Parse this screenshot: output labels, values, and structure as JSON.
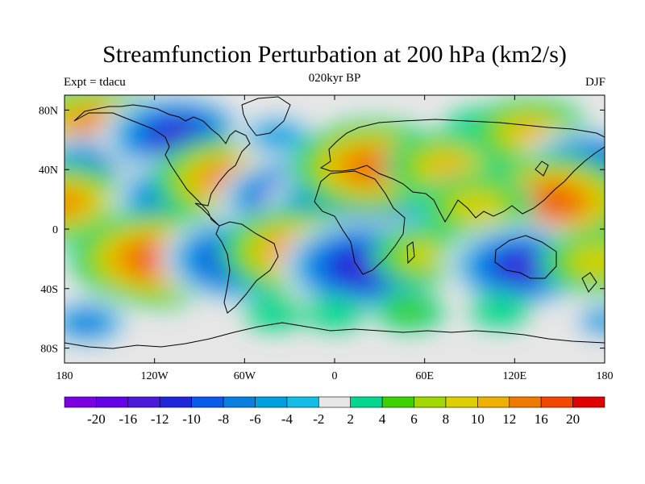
{
  "title": "Streamfunction Perturbation at 200 hPa (km2/s)",
  "left_label": "Expt = tdacu",
  "center_label": "020kyr BP",
  "right_label": "DJF",
  "chart_data": {
    "type": "filled-contour-map",
    "projection": "cylindrical equidistant",
    "variable": "Streamfunction perturbation at 200 hPa",
    "units": "km2/s",
    "lon_range": [
      -180,
      180
    ],
    "lat_range": [
      -90,
      90
    ],
    "x_ticks": [
      "180",
      "120W",
      "60W",
      "0",
      "60E",
      "120E",
      "180"
    ],
    "y_ticks": [
      "80N",
      "40N",
      "0",
      "40S",
      "80S"
    ],
    "contour_levels": [
      "-20",
      "-16",
      "-12",
      "-10",
      "-8",
      "-6",
      "-4",
      "-2",
      "2",
      "4",
      "6",
      "8",
      "10",
      "12",
      "16",
      "20"
    ],
    "colors": [
      "#7a00e0",
      "#6400e8",
      "#4a1ad8",
      "#1e28d8",
      "#0a5ce8",
      "#0a7fe0",
      "#00a0e0",
      "#14bce8",
      "#e6e6e6",
      "#00d890",
      "#3ed000",
      "#a0d800",
      "#dcd000",
      "#f0b000",
      "#ee7a00",
      "#f04800",
      "#e00000"
    ],
    "centers": [
      {
        "lon": -157,
        "lat": 67,
        "value": 15
      },
      {
        "lon": -165,
        "lat": 40,
        "value": -10
      },
      {
        "lon": -180,
        "lat": 18,
        "value": 12
      },
      {
        "lon": -105,
        "lat": 63,
        "value": -14
      },
      {
        "lon": -95,
        "lat": 20,
        "value": -15
      },
      {
        "lon": -70,
        "lat": 33,
        "value": 14
      },
      {
        "lon": -38,
        "lat": 63,
        "value": -6
      },
      {
        "lon": -20,
        "lat": 17,
        "value": -17
      },
      {
        "lon": 10,
        "lat": 13,
        "value": -16
      },
      {
        "lon": 25,
        "lat": 42,
        "value": 15
      },
      {
        "lon": 75,
        "lat": 42,
        "value": 10
      },
      {
        "lon": 95,
        "lat": 70,
        "value": 3
      },
      {
        "lon": 130,
        "lat": 65,
        "value": 10
      },
      {
        "lon": 170,
        "lat": 42,
        "value": -12
      },
      {
        "lon": 145,
        "lat": 18,
        "value": 16
      },
      {
        "lon": 95,
        "lat": 15,
        "value": 9
      },
      {
        "lon": -120,
        "lat": -20,
        "value": 16
      },
      {
        "lon": -165,
        "lat": -63,
        "value": -7
      },
      {
        "lon": -62,
        "lat": -20,
        "value": -15
      },
      {
        "lon": -25,
        "lat": -15,
        "value": 14
      },
      {
        "lon": 20,
        "lat": -25,
        "value": -16
      },
      {
        "lon": 60,
        "lat": -18,
        "value": 8
      },
      {
        "lon": 107,
        "lat": -22,
        "value": 9
      },
      {
        "lon": 125,
        "lat": -25,
        "value": -14
      },
      {
        "lon": 175,
        "lat": -22,
        "value": 9
      },
      {
        "lon": -40,
        "lat": -57,
        "value": 3
      },
      {
        "lon": 0,
        "lat": -57,
        "value": 3
      },
      {
        "lon": 50,
        "lat": -55,
        "value": 4
      },
      {
        "lon": 110,
        "lat": -55,
        "value": 3
      },
      {
        "lon": 180,
        "lat": -62,
        "value": -5
      }
    ]
  }
}
